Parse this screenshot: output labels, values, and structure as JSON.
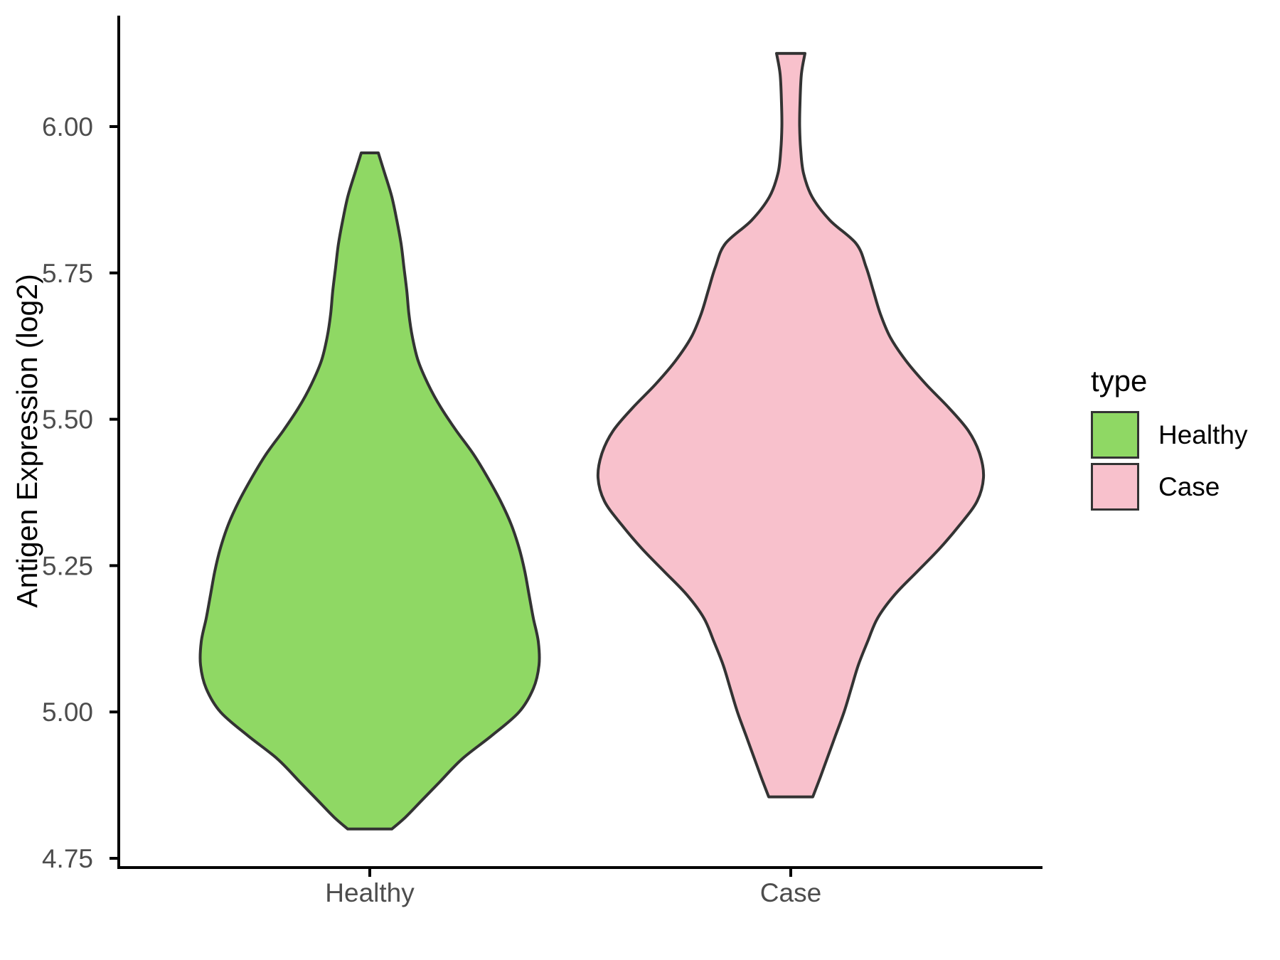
{
  "chart_data": {
    "type": "violin",
    "title": "",
    "xlabel": "",
    "ylabel": "Antigen Expression (log2)",
    "categories": [
      "Healthy",
      "Case"
    ],
    "y_ticks": [
      "6.00",
      "5.75",
      "5.50",
      "5.25",
      "5.00",
      "4.75"
    ],
    "y_tick_values": [
      6.0,
      5.75,
      5.5,
      5.25,
      5.0,
      4.75
    ],
    "ylim": [
      4.75,
      6.13
    ],
    "grid": false,
    "legend": {
      "title": "type",
      "position": "right",
      "entries": [
        {
          "label": "Healthy",
          "color": "#8FD864"
        },
        {
          "label": "Case",
          "color": "#F8C1CC"
        }
      ]
    },
    "colors": {
      "axis": "#000000",
      "tick_labels": "#4D4D4D",
      "text": "#000000",
      "violin_outline": "#333333",
      "background": "#FFFFFF"
    },
    "series": [
      {
        "name": "Healthy",
        "category": "Healthy",
        "fill": "#8FD864",
        "outline": "#333333",
        "value_range": [
          4.8,
          5.955
        ],
        "profile": [
          [
            5.955,
            12
          ],
          [
            5.92,
            21
          ],
          [
            5.88,
            31
          ],
          [
            5.84,
            38
          ],
          [
            5.8,
            44
          ],
          [
            5.76,
            48
          ],
          [
            5.72,
            52
          ],
          [
            5.68,
            55
          ],
          [
            5.64,
            60
          ],
          [
            5.6,
            68
          ],
          [
            5.56,
            82
          ],
          [
            5.52,
            100
          ],
          [
            5.48,
            122
          ],
          [
            5.44,
            146
          ],
          [
            5.4,
            166
          ],
          [
            5.36,
            184
          ],
          [
            5.32,
            199
          ],
          [
            5.28,
            210
          ],
          [
            5.24,
            218
          ],
          [
            5.2,
            224
          ],
          [
            5.16,
            230
          ],
          [
            5.12,
            237
          ],
          [
            5.08,
            238
          ],
          [
            5.04,
            230
          ],
          [
            5.0,
            210
          ],
          [
            4.96,
            172
          ],
          [
            4.92,
            130
          ],
          [
            4.88,
            98
          ],
          [
            4.85,
            74
          ],
          [
            4.82,
            50
          ],
          [
            4.8,
            31
          ]
        ]
      },
      {
        "name": "Case",
        "category": "Case",
        "fill": "#F8C1CC",
        "outline": "#333333",
        "value_range": [
          4.855,
          6.125
        ],
        "profile": [
          [
            6.125,
            20
          ],
          [
            6.09,
            15
          ],
          [
            6.04,
            13
          ],
          [
            6.0,
            12.5
          ],
          [
            5.96,
            14
          ],
          [
            5.92,
            18
          ],
          [
            5.88,
            30
          ],
          [
            5.84,
            55
          ],
          [
            5.8,
            92
          ],
          [
            5.76,
            106
          ],
          [
            5.72,
            116
          ],
          [
            5.68,
            126
          ],
          [
            5.64,
            140
          ],
          [
            5.6,
            162
          ],
          [
            5.56,
            190
          ],
          [
            5.52,
            222
          ],
          [
            5.48,
            250
          ],
          [
            5.44,
            266
          ],
          [
            5.4,
            271
          ],
          [
            5.36,
            262
          ],
          [
            5.32,
            238
          ],
          [
            5.28,
            210
          ],
          [
            5.24,
            178
          ],
          [
            5.2,
            146
          ],
          [
            5.16,
            122
          ],
          [
            5.12,
            108
          ],
          [
            5.08,
            95
          ],
          [
            5.04,
            85
          ],
          [
            5.0,
            75
          ],
          [
            4.96,
            63
          ],
          [
            4.92,
            51
          ],
          [
            4.89,
            42
          ],
          [
            4.855,
            31
          ]
        ]
      }
    ]
  }
}
